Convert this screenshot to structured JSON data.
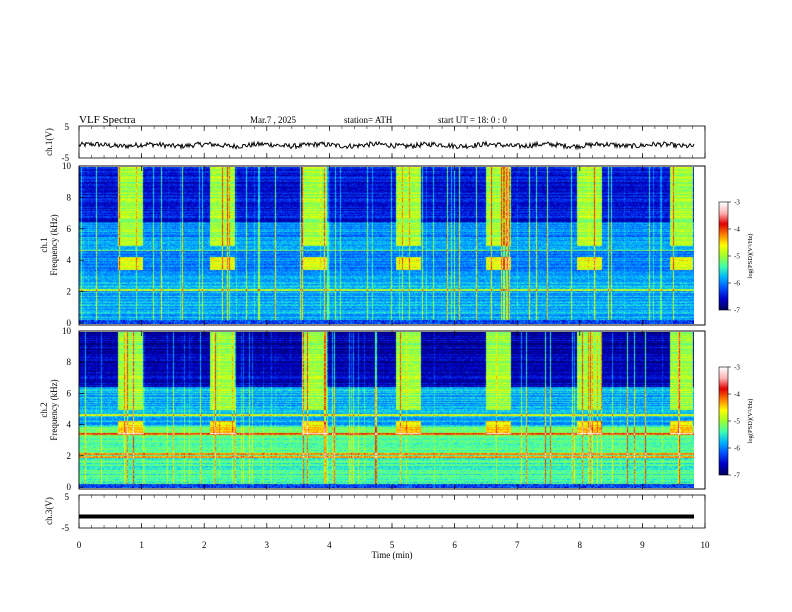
{
  "header": {
    "title": "VLF  Spectra",
    "date": "Mar.7  , 2025",
    "station": "station= ATH",
    "start": "start  UT  =    18: 0   : 0"
  },
  "chart_data": [
    {
      "id": "ch1-waveform",
      "type": "line",
      "ylabel": "ch.1(V)",
      "ylim": [
        -5,
        5
      ],
      "yticks": [
        "5",
        "-5"
      ],
      "description_values": "noisy waveform near -1 V"
    },
    {
      "id": "ch1-spectrogram",
      "type": "heatmap",
      "ylabel": "ch.1\nFrequency  (kHz)",
      "ylabel_line1": "ch.1",
      "ylabel_line2": "Frequency  (kHz)",
      "ylim": [
        0,
        10
      ],
      "yticks": [
        "0",
        "2",
        "4",
        "6",
        "8",
        "10"
      ],
      "xlim": [
        0,
        10
      ],
      "transmitter_bursts_min": [
        [
          0.62,
          1.02
        ],
        [
          2.08,
          2.48
        ],
        [
          3.55,
          3.95
        ],
        [
          5.05,
          5.45
        ],
        [
          6.5,
          6.9
        ],
        [
          7.95,
          8.35
        ],
        [
          9.43,
          9.8
        ]
      ],
      "colorbar": {
        "label": "log(PSD)(V²/Hz)",
        "ticks": [
          "-3",
          "-4",
          "-5",
          "-6",
          "-7"
        ],
        "range": [
          -7,
          -3
        ]
      }
    },
    {
      "id": "ch2-spectrogram",
      "type": "heatmap",
      "ylabel_line1": "ch.2",
      "ylabel_line2": "Frequency  (kHz)",
      "ylim": [
        0,
        10
      ],
      "yticks": [
        "0",
        "2",
        "4",
        "6",
        "8",
        "10"
      ],
      "xlim": [
        0,
        10
      ],
      "colorbar": {
        "label": "log(PSD)(V²/Hz)",
        "ticks": [
          "-3",
          "-4",
          "-5",
          "-6",
          "-7"
        ],
        "range": [
          -7,
          -3
        ]
      }
    },
    {
      "id": "ch3-waveform",
      "type": "line",
      "ylabel": "ch.3(V)",
      "ylim": [
        -5,
        5
      ],
      "yticks": [
        "5",
        "-5"
      ],
      "value": -1.5
    }
  ],
  "xaxis": {
    "label": "Time  (min)",
    "ticks": [
      "0",
      "1",
      "2",
      "3",
      "4",
      "5",
      "6",
      "7",
      "8",
      "9",
      "10"
    ],
    "range": [
      0,
      10
    ]
  },
  "colors": {
    "colormap": [
      "#000060",
      "#0000c8",
      "#0050ff",
      "#00b4ff",
      "#40ffb0",
      "#a0ff30",
      "#ffff00",
      "#ff8000",
      "#e00000",
      "#ffb4b4",
      "#ffffff"
    ]
  }
}
